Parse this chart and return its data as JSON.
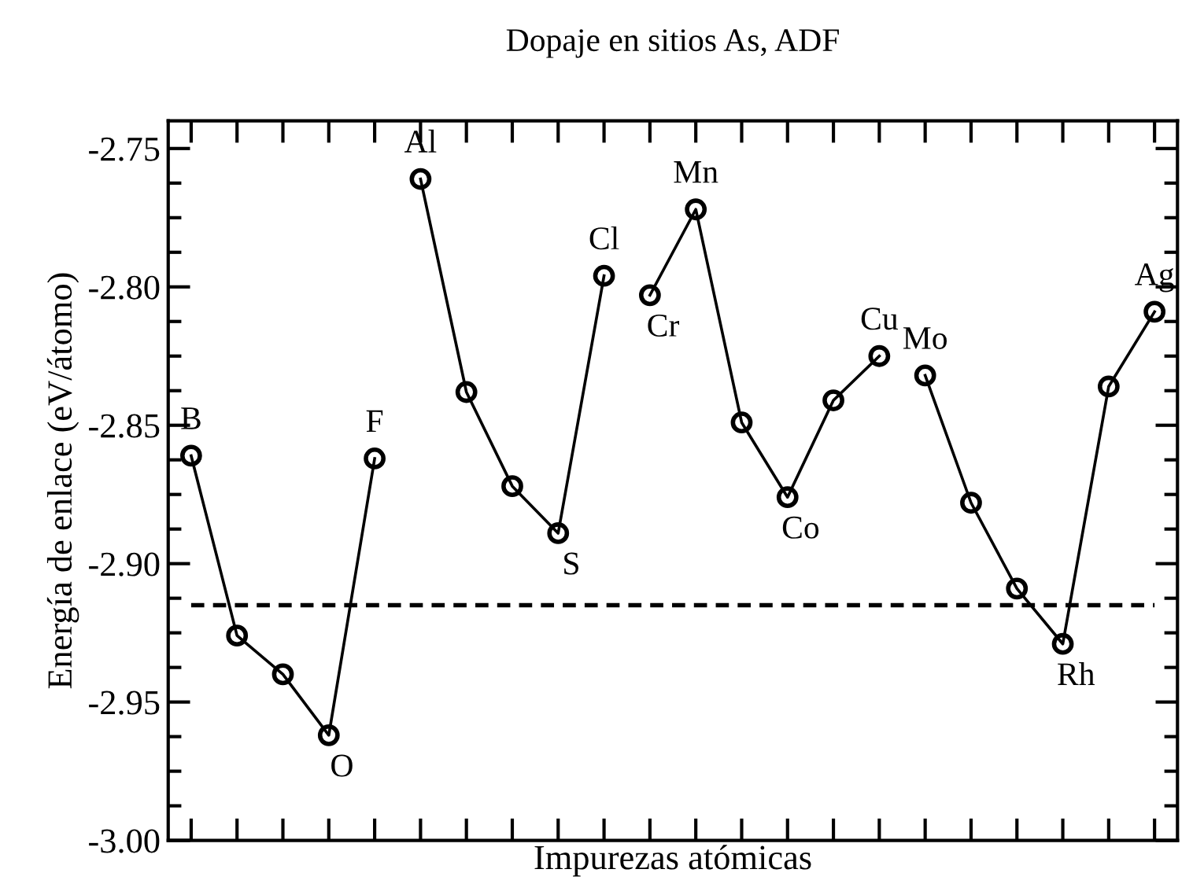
{
  "chart_data": {
    "type": "line",
    "title": "Dopaje en sitios As, ADF",
    "xlabel": "Impurezas atómicas",
    "ylabel": "Energía de enlace (eV/átomo)",
    "categories": [
      null,
      null,
      null,
      null,
      null,
      null,
      null,
      null,
      null,
      null,
      null,
      null,
      null,
      null,
      null,
      null,
      null,
      null,
      null,
      null,
      null,
      null
    ],
    "series": [
      {
        "color": "#000000",
        "values": [
          -2.861,
          -2.926,
          -2.94,
          -2.962,
          -2.862,
          null,
          null,
          null,
          null,
          null,
          null,
          null,
          null,
          null,
          null,
          null,
          null,
          null,
          null,
          null,
          null,
          null
        ]
      },
      {
        "color": "#000000",
        "values": [
          null,
          null,
          null,
          null,
          null,
          -2.761,
          -2.838,
          -2.872,
          -2.889,
          -2.796,
          null,
          null,
          null,
          null,
          null,
          null,
          null,
          null,
          null,
          null,
          null,
          null
        ]
      },
      {
        "color": "#000000",
        "values": [
          null,
          null,
          null,
          null,
          null,
          null,
          null,
          null,
          null,
          null,
          -2.803,
          -2.772,
          -2.849,
          -2.876,
          -2.841,
          -2.825,
          null,
          null,
          null,
          null,
          null,
          null
        ]
      },
      {
        "color": "#000000",
        "values": [
          null,
          null,
          null,
          null,
          null,
          null,
          null,
          null,
          null,
          null,
          null,
          null,
          null,
          null,
          null,
          null,
          -2.832,
          -2.878,
          -2.909,
          -2.929,
          -2.836,
          -2.809
        ]
      }
    ],
    "marker": "circle",
    "line_style": "solid",
    "ylim": [
      -3.0,
      -2.74
    ],
    "yticks": [
      {
        "value": -3.0,
        "label": "-3.00"
      },
      {
        "value": -2.9875,
        "label": null
      },
      {
        "value": -2.975,
        "label": null
      },
      {
        "value": -2.9625,
        "label": null
      },
      -2.95,
      {
        "value": -2.9375,
        "label": null
      },
      {
        "value": -2.925,
        "label": null
      },
      {
        "value": -2.9125,
        "label": null
      },
      {
        "value": -2.9,
        "label": "-2.90"
      },
      {
        "value": -2.8875,
        "label": null
      },
      {
        "value": -2.875,
        "label": null
      },
      {
        "value": -2.8625,
        "label": null
      },
      -2.85,
      {
        "value": -2.8375,
        "label": null
      },
      {
        "value": -2.825,
        "label": null
      },
      {
        "value": -2.8125,
        "label": null
      },
      {
        "value": -2.8,
        "label": "-2.80"
      },
      {
        "value": -2.7875,
        "label": null
      },
      {
        "value": -2.775,
        "label": null
      },
      {
        "value": -2.7625,
        "label": null
      },
      -2.75
    ],
    "tick_labels": "y",
    "grid": false,
    "legend": false,
    "ref_lines": [
      {
        "axis": "y",
        "value": -2.915,
        "line_style": "dashed",
        "color": "#000000"
      }
    ],
    "annotations": [
      {
        "text": "B",
        "y": -2.861
      },
      {
        "text": "O",
        "y": -2.962
      },
      {
        "text": "F",
        "y": -2.862
      },
      {
        "text": "Al",
        "y": -2.761
      },
      {
        "text": "S",
        "y": -2.889
      },
      {
        "text": "Cl",
        "y": -2.796
      },
      {
        "text": "Cr",
        "y": -2.803
      },
      {
        "text": "Mn",
        "y": -2.772
      },
      {
        "text": "Co",
        "y": -2.876
      },
      {
        "text": "Cu",
        "y": -2.825
      },
      {
        "text": "Mo",
        "y": -2.832
      },
      {
        "text": "Rh",
        "y": -2.929
      },
      {
        "text": "Ag",
        "y": -2.809
      }
    ]
  }
}
